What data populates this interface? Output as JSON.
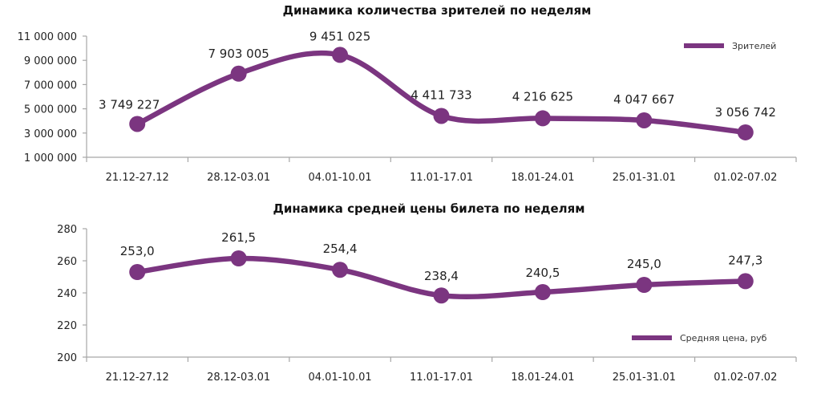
{
  "chart_data": [
    {
      "type": "line",
      "title": "Динамика количества зрителей по неделям",
      "xlabel": "",
      "ylabel": "",
      "categories": [
        "21.12-27.12",
        "28.12-03.01",
        "04.01-10.01",
        "11.01-17.01",
        "18.01-24.01",
        "25.01-31.01",
        "01.02-07.02"
      ],
      "series": [
        {
          "name": "Зрителей",
          "values": [
            3749227,
            7903005,
            9451025,
            4411733,
            4216625,
            4047667,
            3056742
          ]
        }
      ],
      "data_labels": [
        "3 749 227",
        "7 903 005",
        "9 451 025",
        "4 411 733",
        "4 216 625",
        "4 047 667",
        "3 056 742"
      ],
      "ylim": [
        1000000,
        11000000
      ],
      "yticks": [
        1000000,
        3000000,
        5000000,
        7000000,
        9000000,
        11000000
      ],
      "ytick_labels": [
        "1 000 000",
        "3 000 000",
        "5 000 000",
        "7 000 000",
        "9 000 000",
        "11 000 000"
      ],
      "grid": false,
      "smooth": true,
      "legend_position": "top-right",
      "color": "#7b3580"
    },
    {
      "type": "line",
      "title": "Динамика средней цены билета по неделям",
      "xlabel": "",
      "ylabel": "",
      "categories": [
        "21.12-27.12",
        "28.12-03.01",
        "04.01-10.01",
        "11.01-17.01",
        "18.01-24.01",
        "25.01-31.01",
        "01.02-07.02"
      ],
      "series": [
        {
          "name": "Средняя цена, руб",
          "values": [
            253.0,
            261.5,
            254.4,
            238.4,
            240.5,
            245.0,
            247.3
          ]
        }
      ],
      "data_labels": [
        "253,0",
        "261,5",
        "254,4",
        "238,4",
        "240,5",
        "245,0",
        "247,3"
      ],
      "ylim": [
        200,
        280
      ],
      "yticks": [
        200,
        220,
        240,
        260,
        280
      ],
      "ytick_labels": [
        "200",
        "220",
        "240",
        "260",
        "280"
      ],
      "grid": false,
      "smooth": true,
      "legend_position": "bottom-right",
      "color": "#7b3580"
    }
  ]
}
